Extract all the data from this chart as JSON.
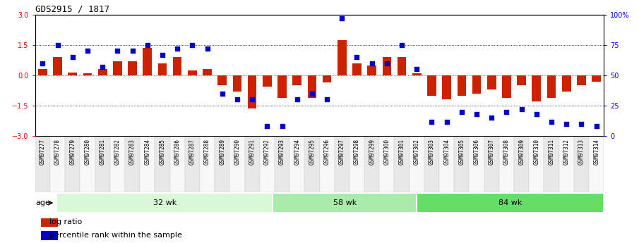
{
  "title": "GDS2915 / 1817",
  "samples": [
    "GSM97277",
    "GSM97278",
    "GSM97279",
    "GSM97280",
    "GSM97281",
    "GSM97282",
    "GSM97283",
    "GSM97284",
    "GSM97285",
    "GSM97286",
    "GSM97287",
    "GSM97288",
    "GSM97289",
    "GSM97290",
    "GSM97291",
    "GSM97292",
    "GSM97293",
    "GSM97294",
    "GSM97295",
    "GSM97296",
    "GSM97297",
    "GSM97298",
    "GSM97299",
    "GSM97300",
    "GSM97301",
    "GSM97302",
    "GSM97303",
    "GSM97304",
    "GSM97305",
    "GSM97306",
    "GSM97307",
    "GSM97308",
    "GSM97309",
    "GSM97310",
    "GSM97311",
    "GSM97312",
    "GSM97313",
    "GSM97314"
  ],
  "log_ratio": [
    0.3,
    0.9,
    0.15,
    0.12,
    0.3,
    0.7,
    0.7,
    1.35,
    0.6,
    0.9,
    0.25,
    0.3,
    -0.5,
    -0.8,
    -1.65,
    -0.55,
    -1.1,
    -0.5,
    -1.1,
    -0.35,
    1.75,
    0.6,
    0.5,
    0.9,
    0.9,
    0.1,
    -1.0,
    -1.2,
    -1.0,
    -0.9,
    -0.7,
    -1.1,
    -0.5,
    -1.3,
    -1.1,
    -0.8,
    -0.5,
    -0.3
  ],
  "percentile": [
    60,
    75,
    65,
    70,
    57,
    70,
    70,
    75,
    67,
    72,
    75,
    72,
    35,
    30,
    30,
    8,
    8,
    30,
    35,
    30,
    97,
    65,
    60,
    60,
    75,
    55,
    12,
    12,
    20,
    18,
    15,
    20,
    22,
    18,
    12,
    10,
    10,
    8
  ],
  "groups": [
    {
      "label": "32 wk",
      "start": 0,
      "end": 15,
      "color": "#d8f8d8"
    },
    {
      "label": "58 wk",
      "start": 15,
      "end": 25,
      "color": "#aaeaaa"
    },
    {
      "label": "84 wk",
      "start": 25,
      "end": 38,
      "color": "#66dd66"
    }
  ],
  "bar_color": "#cc2200",
  "dot_color": "#0000cc",
  "ylim_left": [
    -3,
    3
  ],
  "yticks_left": [
    -3,
    -1.5,
    0,
    1.5,
    3
  ],
  "ytick_right_vals": [
    0,
    25,
    50,
    75,
    100
  ],
  "ytick_right_labels": [
    "0",
    "25",
    "50",
    "75",
    "100%"
  ],
  "age_label": "age",
  "legend_items": [
    {
      "color": "#cc2200",
      "label": "log ratio"
    },
    {
      "color": "#0000cc",
      "label": "percentile rank within the sample"
    }
  ]
}
